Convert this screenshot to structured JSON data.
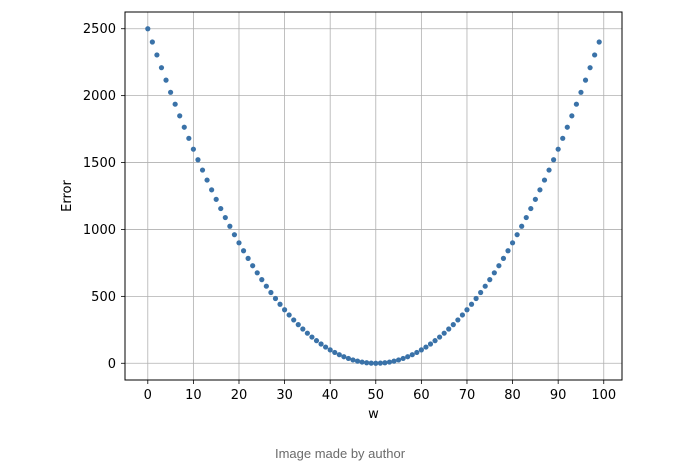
{
  "chart_data": {
    "type": "scatter",
    "xlabel": "w",
    "ylabel": "Error",
    "xlim": [
      -5,
      104
    ],
    "ylim": [
      -125,
      2625
    ],
    "xticks": [
      0,
      10,
      20,
      30,
      40,
      50,
      60,
      70,
      80,
      90,
      100
    ],
    "yticks": [
      0,
      500,
      1000,
      1500,
      2000,
      2500
    ],
    "grid": true,
    "point_color": "#3a72a8",
    "x": [
      0,
      1,
      2,
      3,
      4,
      5,
      6,
      7,
      8,
      9,
      10,
      11,
      12,
      13,
      14,
      15,
      16,
      17,
      18,
      19,
      20,
      21,
      22,
      23,
      24,
      25,
      26,
      27,
      28,
      29,
      30,
      31,
      32,
      33,
      34,
      35,
      36,
      37,
      38,
      39,
      40,
      41,
      42,
      43,
      44,
      45,
      46,
      47,
      48,
      49,
      50,
      51,
      52,
      53,
      54,
      55,
      56,
      57,
      58,
      59,
      60,
      61,
      62,
      63,
      64,
      65,
      66,
      67,
      68,
      69,
      70,
      71,
      72,
      73,
      74,
      75,
      76,
      77,
      78,
      79,
      80,
      81,
      82,
      83,
      84,
      85,
      86,
      87,
      88,
      89,
      90,
      91,
      92,
      93,
      94,
      95,
      96,
      97,
      98,
      99
    ],
    "y": [
      2500,
      2401,
      2304,
      2209,
      2116,
      2025,
      1936,
      1849,
      1764,
      1681,
      1600,
      1521,
      1444,
      1369,
      1296,
      1225,
      1156,
      1089,
      1024,
      961,
      900,
      841,
      784,
      729,
      676,
      625,
      576,
      529,
      484,
      441,
      400,
      361,
      324,
      289,
      256,
      225,
      196,
      169,
      144,
      121,
      100,
      81,
      64,
      49,
      36,
      25,
      16,
      9,
      4,
      1,
      0,
      1,
      4,
      9,
      16,
      25,
      36,
      49,
      64,
      81,
      100,
      121,
      144,
      169,
      196,
      225,
      256,
      289,
      324,
      361,
      400,
      441,
      484,
      529,
      576,
      625,
      676,
      729,
      784,
      841,
      900,
      961,
      1024,
      1089,
      1156,
      1225,
      1296,
      1369,
      1444,
      1521,
      1600,
      1681,
      1764,
      1849,
      1936,
      2025,
      2116,
      2209,
      2304,
      2401
    ]
  },
  "caption": "Image made by author"
}
